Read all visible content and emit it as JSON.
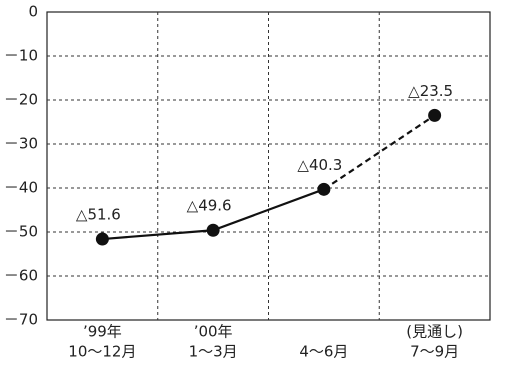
{
  "chart_data": {
    "type": "line",
    "categories": [
      [
        "’99年",
        "10～12月"
      ],
      [
        "’00年",
        "1～3月"
      ],
      [
        "4～6月"
      ],
      [
        "(見通し)",
        "7～9月"
      ]
    ],
    "series": [
      {
        "color": "#111111",
        "values": [
          -51.6,
          -49.6,
          -40.3,
          -23.5
        ],
        "value_labels": [
          "△51.6",
          "△49.6",
          "△40.3",
          "△23.5"
        ],
        "dashed_from": 2
      }
    ],
    "ylim": [
      -70,
      0
    ],
    "yticks": [
      {
        "value": 0,
        "label": "0"
      },
      {
        "value": -10,
        "label": "－10"
      },
      {
        "value": -20,
        "label": "－20"
      },
      {
        "value": -30,
        "label": "－30"
      },
      {
        "value": -40,
        "label": "－40"
      },
      {
        "value": -50,
        "label": "－50"
      },
      {
        "value": -60,
        "label": "－60"
      },
      {
        "value": -70,
        "label": "－70"
      }
    ],
    "grid": true
  }
}
